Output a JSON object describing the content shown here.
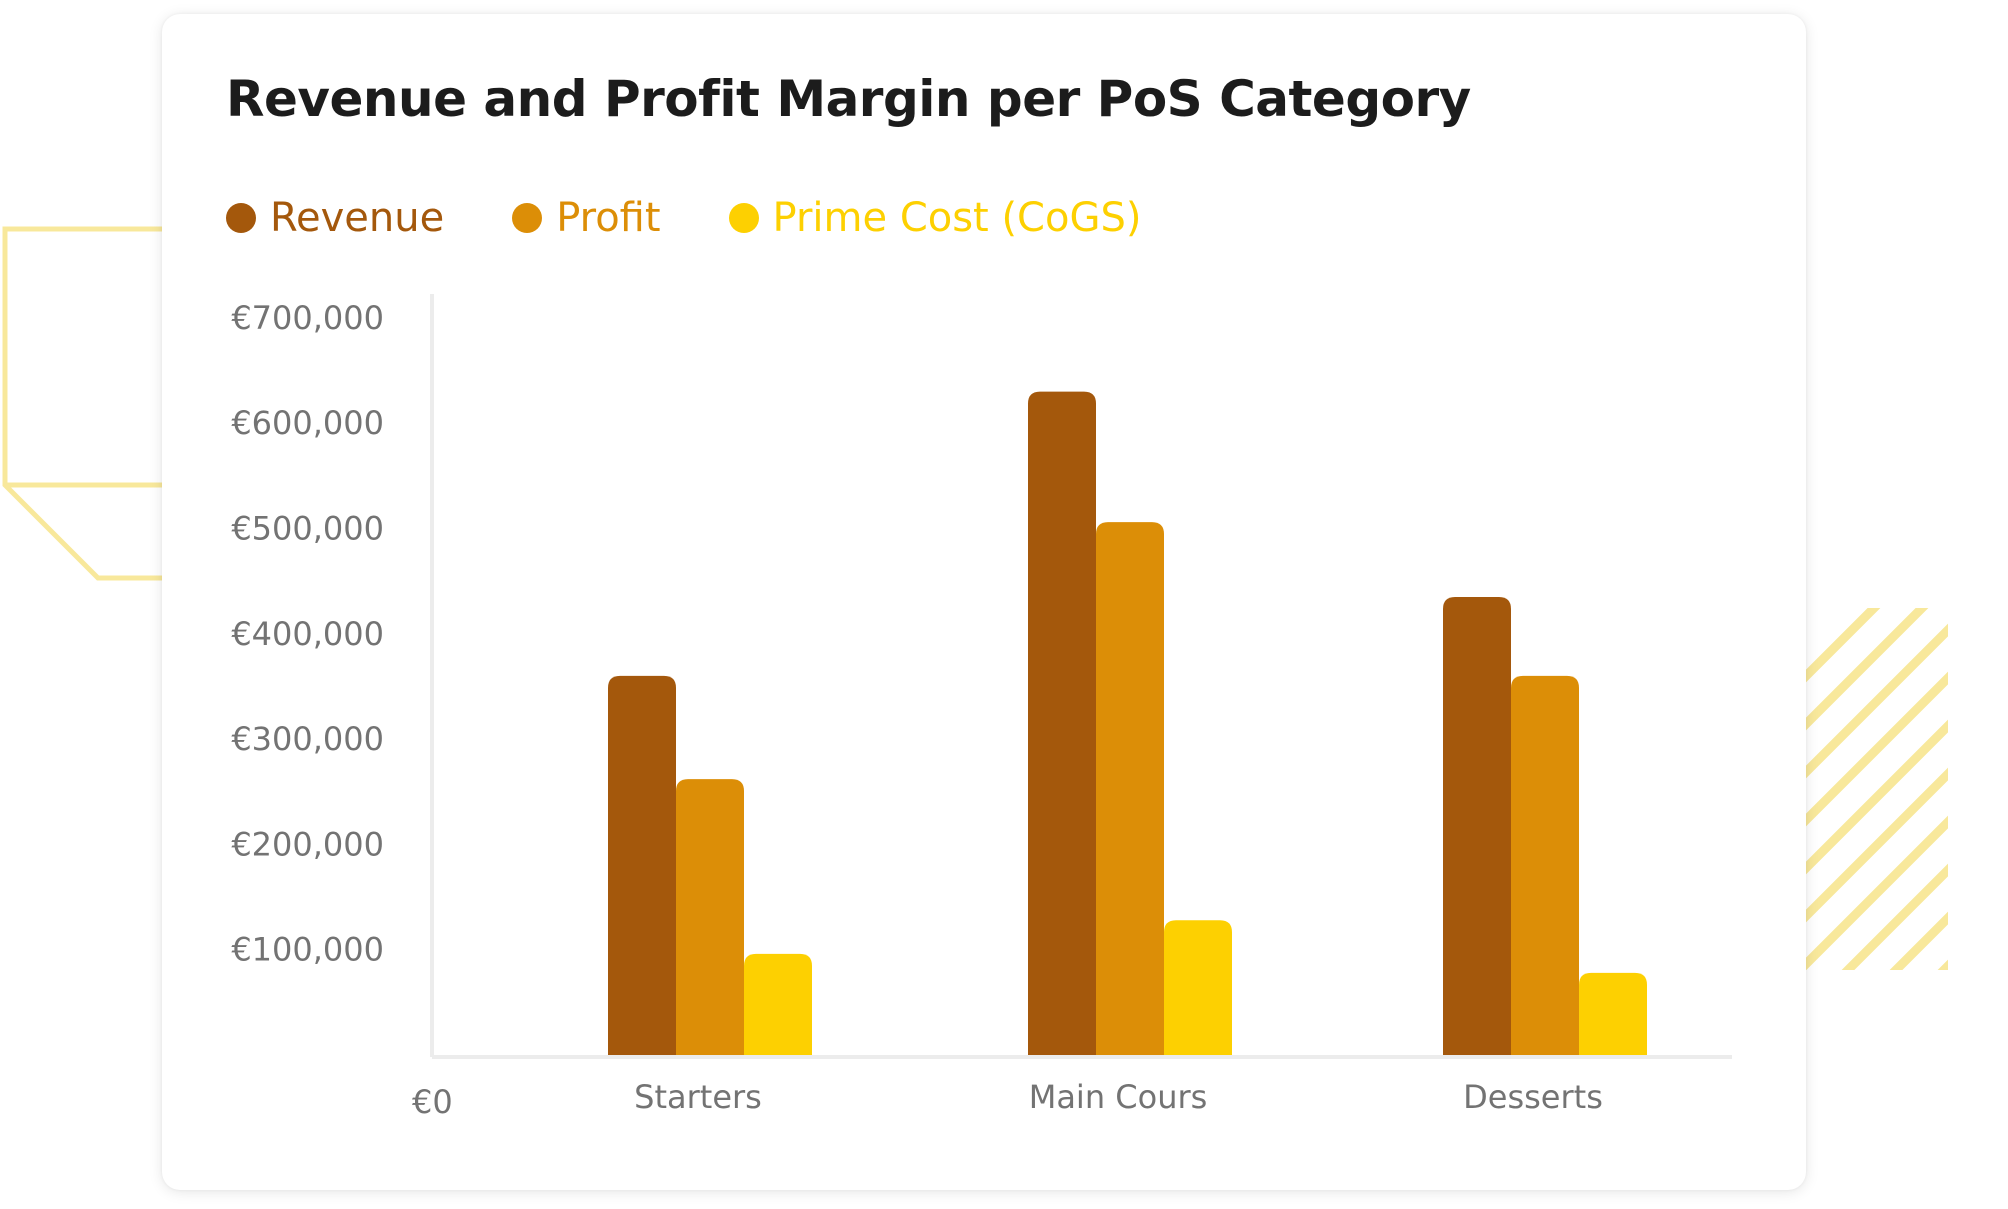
{
  "colors": {
    "revenue": "#a4580c",
    "profit": "#dc8e07",
    "prime_cost": "#fdd001",
    "deco": "#f8e89b",
    "axis": "#ececec",
    "tick_text": "#737373"
  },
  "chart_data": {
    "type": "bar",
    "title": "Revenue and Profit Margin per PoS Category",
    "categories": [
      "Starters",
      "Main Cours",
      "Desserts"
    ],
    "series": [
      {
        "key": "revenue",
        "name": "Revenue",
        "values": [
          360000,
          630000,
          435000
        ]
      },
      {
        "key": "profit",
        "name": "Profit",
        "values": [
          262000,
          506000,
          360000
        ]
      },
      {
        "key": "prime_cost",
        "name": "Prime Cost (CoGS)",
        "values": [
          96000,
          128000,
          78000
        ]
      }
    ],
    "ylim": [
      0,
      700000
    ],
    "y_ticks": [
      0,
      100000,
      200000,
      300000,
      400000,
      500000,
      600000,
      700000
    ],
    "y_tick_labels": [
      "€0",
      "€100,000",
      "€200,000",
      "€300,000",
      "€400,000",
      "€500,000",
      "€600,000",
      "€700,000"
    ],
    "xlabel": "",
    "ylabel": "",
    "grid": false,
    "legend_position": "top-left"
  }
}
